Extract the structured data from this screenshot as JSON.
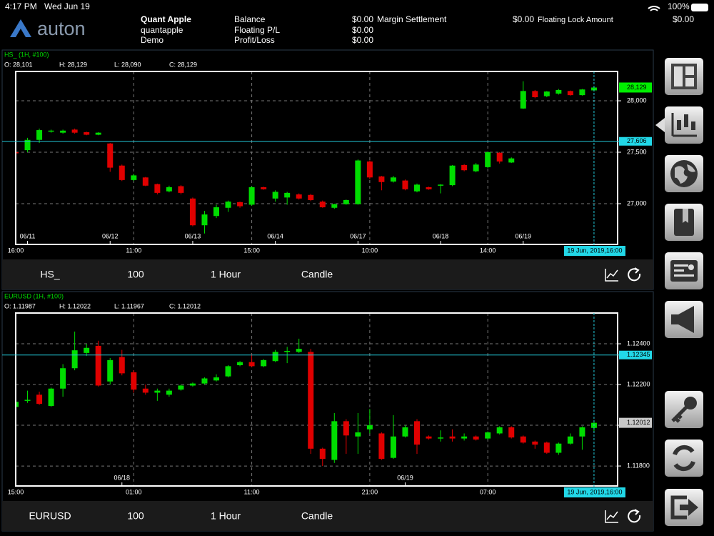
{
  "status_bar": {
    "time": "4:17 PM",
    "date": "Wed Jun 19",
    "battery": "100%"
  },
  "header": {
    "logo": "auton",
    "account": {
      "name": "Quant Apple",
      "user": "quantapple",
      "mode": "Demo"
    },
    "fields": [
      {
        "label": "Balance",
        "value": "$0.00"
      },
      {
        "label": "Floating P/L",
        "value": "$0.00"
      },
      {
        "label": "Profit/Loss",
        "value": "$0.00"
      }
    ],
    "margin_settlement": {
      "label": "Margin Settlement",
      "value": "$0.00"
    },
    "floating_lock": {
      "label": "Floating Lock Amount",
      "value": "$0.00"
    }
  },
  "chart_data": [
    {
      "type": "candlestick",
      "title": "HS_ (1H, #100)",
      "ohlc_labels": [
        "O: 28,101",
        "H: 28,129",
        "L: 28,090",
        "C: 28,129"
      ],
      "up_color": "#00dd00",
      "down_color": "#e00000",
      "grid": true,
      "xlim": [
        0,
        51
      ],
      "ylim": [
        26604,
        28285
      ],
      "yticks": [
        {
          "value": 28000,
          "label": "28,000"
        },
        {
          "value": 27500,
          "label": "27,500"
        },
        {
          "value": 27000,
          "label": "27,000"
        }
      ],
      "xticks": [
        {
          "value": 0,
          "label": "16:00"
        },
        {
          "value": 10,
          "label": "11:00"
        },
        {
          "value": 20,
          "label": "15:00"
        },
        {
          "value": 30,
          "label": "10:00"
        },
        {
          "value": 40,
          "label": "14:00"
        }
      ],
      "date_ticks": [
        {
          "value": 1,
          "label": "06/11"
        },
        {
          "value": 8,
          "label": "06/12"
        },
        {
          "value": 15,
          "label": "06/13"
        },
        {
          "value": 22,
          "label": "06/14"
        },
        {
          "value": 29,
          "label": "06/17"
        },
        {
          "value": 36,
          "label": "06/18"
        },
        {
          "value": 43,
          "label": "06/19"
        }
      ],
      "open": [
        27500,
        27520,
        27620,
        27700,
        27690,
        27720,
        27695,
        27670,
        27585,
        27370,
        27230,
        27255,
        27190,
        27120,
        27170,
        27050,
        26790,
        26880,
        26960,
        27015,
        26990,
        27160,
        27050,
        27060,
        27090,
        27085,
        27020,
        26960,
        26995,
        26995,
        27410,
        27265,
        27215,
        27225,
        27120,
        27160,
        27175,
        27180,
        27375,
        27315,
        27355,
        27495,
        27400,
        27925,
        28095,
        28045,
        28070,
        28095,
        28055,
        28101
      ],
      "high": [
        27505,
        27640,
        27730,
        27720,
        27720,
        27730,
        27700,
        27695,
        27590,
        27380,
        27290,
        27260,
        27195,
        27175,
        27180,
        27060,
        26930,
        26990,
        27030,
        27020,
        27170,
        27165,
        27130,
        27115,
        27100,
        27095,
        27030,
        27000,
        27040,
        27430,
        27420,
        27270,
        27270,
        27235,
        27195,
        27165,
        27190,
        27375,
        27385,
        27395,
        27510,
        27500,
        27450,
        28190,
        28105,
        28095,
        28115,
        28100,
        28115,
        28129
      ],
      "low": [
        27485,
        27500,
        27590,
        27690,
        27680,
        27680,
        27665,
        27665,
        27310,
        27220,
        27220,
        27170,
        27090,
        27110,
        27090,
        26780,
        26710,
        26860,
        26920,
        26960,
        26980,
        27135,
        27020,
        26990,
        27040,
        27025,
        26960,
        26950,
        26990,
        26990,
        27240,
        27130,
        27205,
        27130,
        27110,
        27135,
        27100,
        27170,
        27315,
        27305,
        27345,
        27390,
        27395,
        27920,
        28025,
        28035,
        28060,
        28050,
        28050,
        28090
      ],
      "close": [
        27490,
        27620,
        27715,
        27710,
        27710,
        27690,
        27670,
        27690,
        27350,
        27230,
        27275,
        27175,
        27105,
        27160,
        27105,
        26790,
        26895,
        26965,
        27020,
        26975,
        27160,
        27140,
        27115,
        27105,
        27050,
        27035,
        26965,
        26995,
        27035,
        27420,
        27255,
        27210,
        27255,
        27140,
        27185,
        27140,
        27185,
        27370,
        27325,
        27380,
        27500,
        27410,
        27440,
        28095,
        28035,
        28090,
        28105,
        28055,
        28110,
        28129
      ],
      "last_price": {
        "value": 28129,
        "label": "28,129"
      },
      "crosshair": {
        "price": {
          "value": 27606,
          "label": "27,606"
        },
        "index": 49,
        "time": "19 Jun, 2019,16:00"
      },
      "toolbar": {
        "symbol": "HS_",
        "bars": "100",
        "period": "1 Hour",
        "style": "Candle"
      }
    },
    {
      "type": "candlestick",
      "title": "EURUSD (1H, #100)",
      "ohlc_labels": [
        "O: 1.11987",
        "H: 1.12022",
        "L: 1.11967",
        "C: 1.12012"
      ],
      "up_color": "#00dd00",
      "down_color": "#e00000",
      "grid": true,
      "xlim": [
        0,
        51
      ],
      "ylim": [
        1.11702,
        1.12551
      ],
      "yticks": [
        {
          "value": 1.124,
          "label": "1.12400"
        },
        {
          "value": 1.122,
          "label": "1.12200"
        },
        {
          "value": 1.12,
          "label": "1.12000"
        },
        {
          "value": 1.118,
          "label": "1.11800"
        }
      ],
      "xticks": [
        {
          "value": 0,
          "label": "15:00"
        },
        {
          "value": 10,
          "label": "01:00"
        },
        {
          "value": 20,
          "label": "11:00"
        },
        {
          "value": 30,
          "label": "21:00"
        },
        {
          "value": 40,
          "label": "07:00"
        }
      ],
      "date_ticks": [
        {
          "value": 9,
          "label": "06/18"
        },
        {
          "value": 33,
          "label": "06/19"
        }
      ],
      "open": [
        1.1209,
        1.1212,
        1.1215,
        1.12095,
        1.1218,
        1.1228,
        1.12355,
        1.1239,
        1.12215,
        1.12335,
        1.1226,
        1.1218,
        1.1216,
        1.1215,
        1.12175,
        1.12195,
        1.12205,
        1.1222,
        1.1224,
        1.12295,
        1.1231,
        1.1229,
        1.12315,
        1.1236,
        1.1236,
        1.1236,
        1.11885,
        1.1183,
        1.1202,
        1.11945,
        1.1198,
        1.1196,
        1.1184,
        1.11945,
        1.1202,
        1.11945,
        1.11935,
        1.11945,
        1.11935,
        1.11945,
        1.11935,
        1.1196,
        1.1199,
        1.11945,
        1.1192,
        1.11915,
        1.11865,
        1.1191,
        1.11945,
        1.11987
      ],
      "high": [
        1.1212,
        1.1217,
        1.12165,
        1.12185,
        1.123,
        1.1246,
        1.124,
        1.12415,
        1.1233,
        1.1237,
        1.1227,
        1.122,
        1.1218,
        1.1218,
        1.122,
        1.1221,
        1.12235,
        1.1225,
        1.12295,
        1.12315,
        1.1235,
        1.12325,
        1.1237,
        1.12385,
        1.12425,
        1.12375,
        1.1189,
        1.1206,
        1.1203,
        1.1206,
        1.1208,
        1.11965,
        1.1205,
        1.12,
        1.1203,
        1.1195,
        1.11975,
        1.1198,
        1.1196,
        1.1195,
        1.1197,
        1.11995,
        1.11995,
        1.1195,
        1.11925,
        1.1192,
        1.11915,
        1.1196,
        1.11995,
        1.12022
      ],
      "low": [
        1.12085,
        1.1211,
        1.121,
        1.1209,
        1.1214,
        1.1227,
        1.1234,
        1.1219,
        1.122,
        1.12245,
        1.1216,
        1.1215,
        1.1212,
        1.1214,
        1.1217,
        1.1219,
        1.122,
        1.12215,
        1.12235,
        1.1229,
        1.12285,
        1.12285,
        1.1231,
        1.12305,
        1.12355,
        1.1186,
        1.118,
        1.11815,
        1.1186,
        1.1186,
        1.1196,
        1.1183,
        1.11835,
        1.1194,
        1.1186,
        1.1193,
        1.1192,
        1.1192,
        1.11925,
        1.11925,
        1.1193,
        1.11955,
        1.11935,
        1.1191,
        1.11885,
        1.1186,
        1.11855,
        1.11905,
        1.1188,
        1.11967
      ],
      "close": [
        1.12115,
        1.12125,
        1.12105,
        1.1218,
        1.1228,
        1.12368,
        1.1238,
        1.12195,
        1.1232,
        1.12255,
        1.12175,
        1.1216,
        1.1217,
        1.1217,
        1.12195,
        1.12205,
        1.1223,
        1.12235,
        1.1229,
        1.1231,
        1.1229,
        1.1232,
        1.1236,
        1.12365,
        1.12375,
        1.11885,
        1.11835,
        1.1202,
        1.1195,
        1.11965,
        1.12,
        1.11835,
        1.11945,
        1.1199,
        1.11905,
        1.11935,
        1.1194,
        1.11935,
        1.11945,
        1.1193,
        1.11965,
        1.1199,
        1.1194,
        1.11915,
        1.11905,
        1.11865,
        1.1191,
        1.11945,
        1.1199,
        1.12012
      ],
      "last_price": {
        "value": 1.12012,
        "label": "1.12012"
      },
      "crosshair": {
        "price": {
          "value": 1.12345,
          "label": "1.12345"
        },
        "index": 49,
        "time": "19 Jun, 2019,16:00"
      },
      "toolbar": {
        "symbol": "EURUSD",
        "bars": "100",
        "period": "1 Hour",
        "style": "Candle"
      }
    }
  ]
}
